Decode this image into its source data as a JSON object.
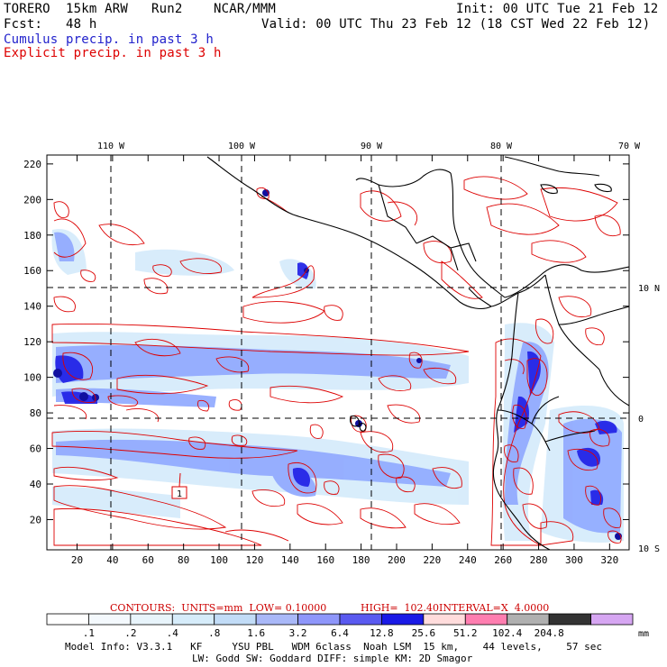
{
  "header": {
    "model": "TORERO  15km ARW   Run2    NCAR/MMM",
    "init": "Init: 00 UTC Tue 21 Feb 12",
    "fcst": "Fcst:   48 h",
    "valid": "Valid: 00 UTC Thu 23 Feb 12 (18 CST Wed 22 Feb 12)",
    "legend_cumulus": "Cumulus precip. in past 3 h",
    "legend_explicit": "Explicit precip. in past 3 h"
  },
  "map": {
    "lon_labels": [
      "110 W",
      "100 W",
      "90 W",
      "80 W",
      "70 W"
    ],
    "lat_labels": [
      "10 N",
      "0",
      "10 S"
    ],
    "x_ticks": [
      "20",
      "40",
      "60",
      "80",
      "100",
      "120",
      "140",
      "160",
      "180",
      "200",
      "220",
      "240",
      "260",
      "280",
      "300",
      "320"
    ],
    "y_ticks": [
      "20",
      "40",
      "60",
      "80",
      "100",
      "120",
      "140",
      "160",
      "180",
      "200",
      "220"
    ],
    "box_label": "1",
    "colors": {
      "land_outline": "#000000",
      "contour": "#dd0000",
      "precip_light": "#d6ecfb",
      "precip_mid": "#8fa8ff",
      "precip_heavy": "#1e1ee6",
      "precip_dark": "#1010a0"
    }
  },
  "contours_info": {
    "contours": "CONTOURS:  UNITS=mm  LOW= 0.10000",
    "high": "HIGH=  102.40",
    "interval": "INTERVAL=X  4.0000"
  },
  "colorbar": {
    "labels": [
      ".1",
      ".2",
      ".4",
      ".8",
      "1.6",
      "3.2",
      "6.4",
      "12.8",
      "25.6",
      "51.2",
      "102.4",
      "204.8"
    ],
    "unit": "mm",
    "colors": [
      "#ffffff",
      "#f4f9fd",
      "#e8f4fb",
      "#d6ecfa",
      "#c2dcf7",
      "#a9b8f8",
      "#8e96fa",
      "#5a5af0",
      "#1a1ae6",
      "#ffdcdc",
      "#ff7eb0",
      "#b0b0b0",
      "#333333",
      "#d6a6f2"
    ]
  },
  "footer": {
    "line1": "Model Info: V3.3.1   KF     YSU PBL   WDM 6class  Noah LSM  15 km,    44 levels,    57 sec",
    "line2": "LW: Godd SW: Goddard DIFF: simple KM: 2D Smagor"
  }
}
